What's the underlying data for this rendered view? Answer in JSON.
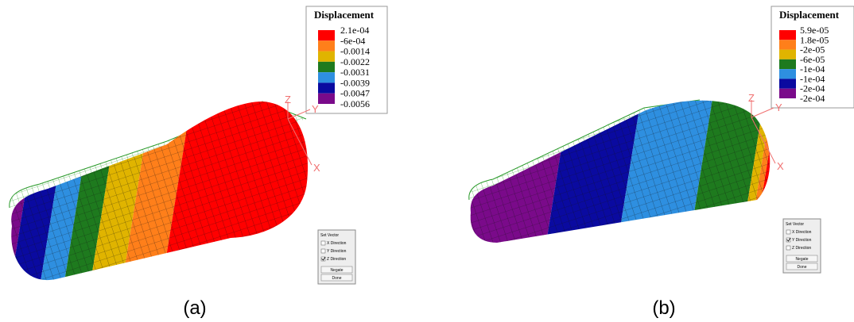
{
  "panels": [
    {
      "legend": {
        "title": "Displacement",
        "labels": [
          "2.1e-04",
          "-6e-04",
          "-0.0014",
          "-0.0022",
          "-0.0031",
          "-0.0039",
          "-0.0047",
          "-0.0056"
        ],
        "colors": [
          "#ff0000",
          "#ff7f1a",
          "#e0b400",
          "#1e7a1e",
          "#2e8fe0",
          "#0a0aa0",
          "#7a0a8a"
        ]
      },
      "axes": {
        "z": "Z",
        "y": "Y",
        "x": "X"
      },
      "dialog": {
        "title": "Set Vector",
        "options": [
          {
            "label": "X Direction",
            "checked": false
          },
          {
            "label": "Y Direction",
            "checked": false
          },
          {
            "label": "Z Direction",
            "checked": true
          }
        ],
        "buttons": [
          "Negate",
          "Done"
        ]
      },
      "caption": "(a)"
    },
    {
      "legend": {
        "title": "Displacement",
        "labels": [
          "5.9e-05",
          "1.8e-05",
          "-2e-05",
          "-6e-05",
          "-1e-04",
          "-1e-04",
          "-2e-04",
          "-2e-04"
        ],
        "colors": [
          "#ff0000",
          "#ff7f1a",
          "#e0b400",
          "#1e7a1e",
          "#2e8fe0",
          "#0a0aa0",
          "#7a0a8a"
        ]
      },
      "axes": {
        "z": "Z",
        "y": "Y",
        "x": "X"
      },
      "dialog": {
        "title": "Set Vector",
        "options": [
          {
            "label": "X Direction",
            "checked": false
          },
          {
            "label": "Y Direction",
            "checked": true
          },
          {
            "label": "Z Direction",
            "checked": false
          }
        ],
        "buttons": [
          "Negate",
          "Done"
        ]
      },
      "caption": "(b)"
    }
  ]
}
